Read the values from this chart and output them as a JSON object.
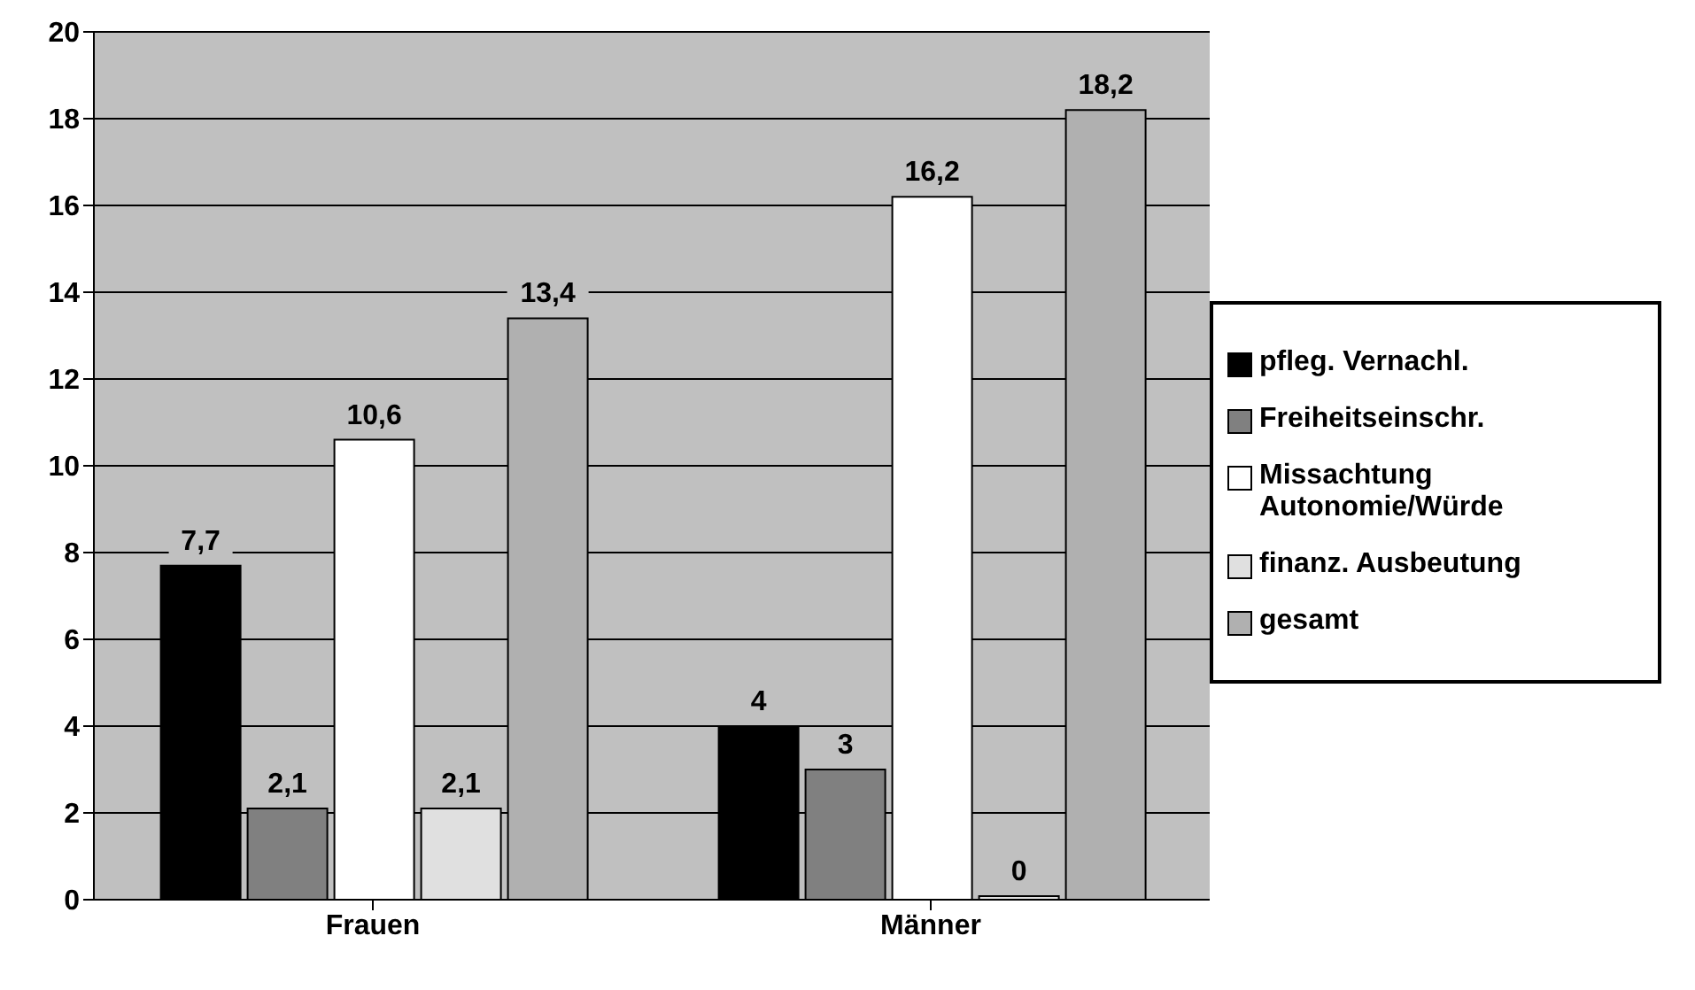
{
  "chart_data": {
    "type": "bar",
    "categories": [
      "Frauen",
      "Männer"
    ],
    "series": [
      {
        "name": "pfleg. Vernachl.",
        "color": "#000000",
        "values": [
          7.7,
          4
        ],
        "value_labels": [
          "7,7",
          "4"
        ]
      },
      {
        "name": "Freiheitseinschr.",
        "color": "#808080",
        "values": [
          2.1,
          3
        ],
        "value_labels": [
          "2,1",
          "3"
        ]
      },
      {
        "name": "Missachtung Autonomie/Würde",
        "color": "#ffffff",
        "values": [
          10.6,
          16.2
        ],
        "value_labels": [
          "10,6",
          "16,2"
        ]
      },
      {
        "name": "finanz. Ausbeutung",
        "color": "#e0e0e0",
        "values": [
          2.1,
          0
        ],
        "value_labels": [
          "2,1",
          "0"
        ]
      },
      {
        "name": "gesamt",
        "color": "#b0b0b0",
        "values": [
          13.4,
          18.2
        ],
        "value_labels": [
          "13,4",
          "18,2"
        ]
      }
    ],
    "ylim": [
      0,
      20
    ],
    "yticks": [
      0,
      2,
      4,
      6,
      8,
      10,
      12,
      14,
      16,
      18,
      20
    ],
    "grid": "y",
    "legend": "right"
  }
}
